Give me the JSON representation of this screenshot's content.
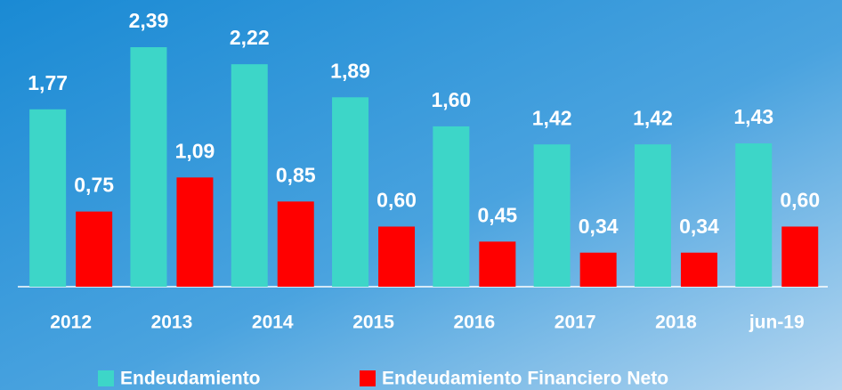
{
  "chart_data": {
    "type": "bar",
    "categories": [
      "2012",
      "2013",
      "2014",
      "2015",
      "2016",
      "2017",
      "2018",
      "jun-19"
    ],
    "series": [
      {
        "name": "Endeudamiento",
        "color": "#3dd6c8",
        "values": [
          1.77,
          2.39,
          2.22,
          1.89,
          1.6,
          1.42,
          1.42,
          1.43
        ],
        "value_labels": [
          "1,77",
          "2,39",
          "2,22",
          "1,89",
          "1,60",
          "1,42",
          "1,42",
          "1,43"
        ]
      },
      {
        "name": "Endeudamiento Financiero Neto",
        "color": "#ff0000",
        "values": [
          0.75,
          1.09,
          0.85,
          0.6,
          0.45,
          0.34,
          0.34,
          0.6
        ],
        "value_labels": [
          "0,75",
          "1,09",
          "0,85",
          "0,60",
          "0,45",
          "0,34",
          "0,34",
          "0,60"
        ]
      }
    ]
  }
}
